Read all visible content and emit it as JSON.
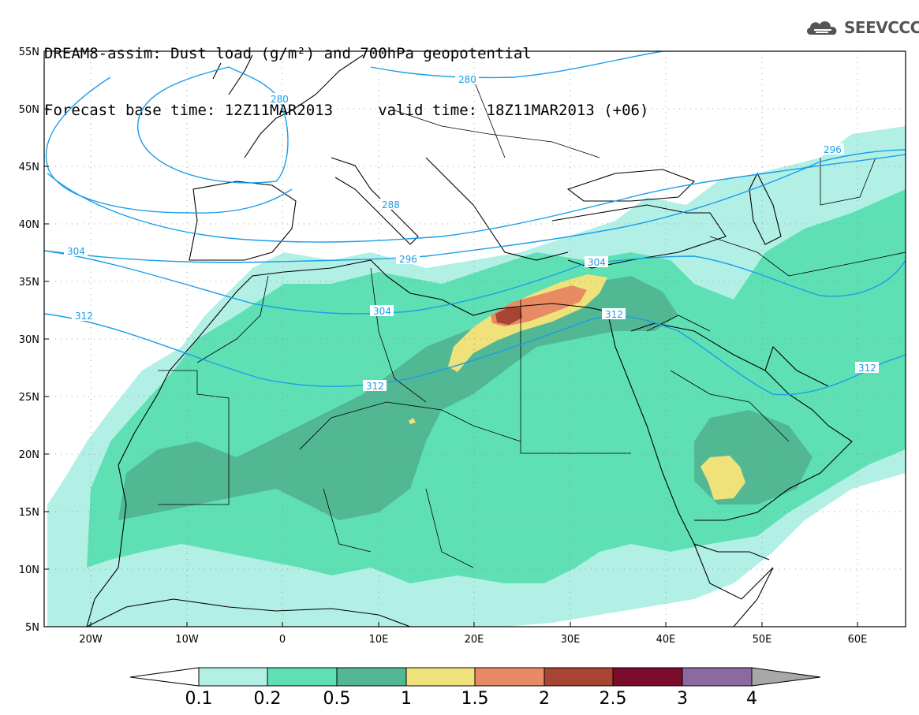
{
  "header": {
    "line1": "DREAM8-assim: Dust load (g/m²) and 700hPa geopotential",
    "line2": "Forecast base time: 12Z11MAR2013     valid time: 18Z11MAR2013 (+06)"
  },
  "logo": {
    "text": "SEEVCCC",
    "icon": "cloud-icon"
  },
  "map": {
    "lat_labels": [
      "55N",
      "50N",
      "45N",
      "40N",
      "35N",
      "30N",
      "25N",
      "20N",
      "15N",
      "10N",
      "5N"
    ],
    "lon_labels": [
      "20W",
      "10W",
      "0",
      "10E",
      "20E",
      "30E",
      "40E",
      "50E",
      "60E"
    ],
    "contour_labels": [
      "280",
      "280",
      "288",
      "296",
      "296",
      "304",
      "304",
      "304",
      "312",
      "312",
      "312",
      "312"
    ]
  },
  "colorbar": {
    "labels": [
      "0.1",
      "0.2",
      "0.5",
      "1",
      "1.5",
      "2",
      "2.5",
      "3",
      "4"
    ],
    "colors": [
      "#b2f0e6",
      "#5ee0b4",
      "#52b894",
      "#f0e27a",
      "#e88a64",
      "#a84434",
      "#7c0c2c",
      "#8a6aa0"
    ],
    "under_color": "#ffffff",
    "over_color": "#a8a8a8"
  }
}
